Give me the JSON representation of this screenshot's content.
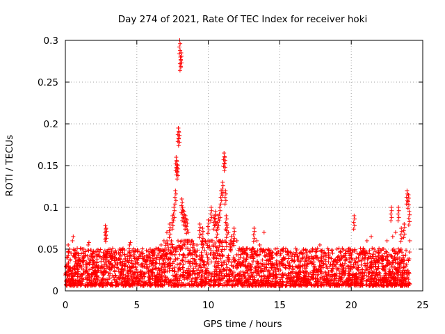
{
  "chart_data": {
    "type": "scatter",
    "title": "Day 274 of 2021, Rate Of TEC Index for receiver hoki",
    "xlabel": "GPS time / hours",
    "ylabel": "ROTI / TECUs",
    "xlim": [
      0,
      25
    ],
    "ylim": [
      0,
      0.3
    ],
    "x_ticks": [
      "0",
      "5",
      "10",
      "15",
      "20",
      "25"
    ],
    "y_ticks": [
      "0",
      "0.05",
      "0.1",
      "0.15",
      "0.2",
      "0.25",
      "0.3"
    ],
    "x_tick_values": [
      0,
      5,
      10,
      15,
      20,
      25
    ],
    "y_tick_values": [
      0,
      0.05,
      0.1,
      0.15,
      0.2,
      0.25,
      0.3
    ],
    "grid": true,
    "marker": "plus",
    "color": "#ff0000",
    "series": [
      {
        "x": [
          0.1,
          0.2,
          0.3,
          0.4,
          0.5,
          0.55,
          0.7,
          1.0,
          1.3,
          1.6,
          1.65,
          2.0,
          2.3,
          2.8,
          2.85,
          3.2,
          3.5,
          3.8,
          4.2,
          4.5,
          4.55,
          4.9,
          5.3,
          5.6,
          5.9,
          6.2,
          6.5,
          6.7,
          6.9,
          7.1,
          7.3,
          7.5,
          7.6,
          7.7,
          7.75,
          7.8,
          7.85,
          7.9,
          7.95,
          8.0,
          8.05,
          8.1,
          8.15,
          8.2,
          8.3,
          8.4,
          8.5,
          8.6,
          8.8,
          9.0,
          9.2,
          9.4,
          9.6,
          9.8,
          10.0,
          10.2,
          10.4,
          10.5,
          10.6,
          10.7,
          10.8,
          10.9,
          11.0,
          11.1,
          11.15,
          11.2,
          11.25,
          11.3,
          11.4,
          11.6,
          11.8,
          12.0,
          12.3,
          12.6,
          12.9,
          13.2,
          13.4,
          13.6,
          13.9,
          14.2,
          14.5,
          14.8,
          15.1,
          15.4,
          15.7,
          16.0,
          16.3,
          16.6,
          16.9,
          17.2,
          17.5,
          17.8,
          18.1,
          18.4,
          18.7,
          19.0,
          19.3,
          19.6,
          19.9,
          20.2,
          20.5,
          20.8,
          21.1,
          21.4,
          21.6,
          21.9,
          22.2,
          22.5,
          22.8,
          22.9,
          23.1,
          23.3,
          23.5,
          23.7,
          23.9,
          24.0,
          24.05,
          24.1
        ],
        "y": [
          0.04,
          0.055,
          0.05,
          0.045,
          0.06,
          0.065,
          0.035,
          0.03,
          0.04,
          0.055,
          0.058,
          0.035,
          0.03,
          0.078,
          0.075,
          0.045,
          0.04,
          0.05,
          0.038,
          0.055,
          0.058,
          0.035,
          0.03,
          0.035,
          0.04,
          0.045,
          0.05,
          0.055,
          0.06,
          0.07,
          0.08,
          0.09,
          0.1,
          0.12,
          0.16,
          0.155,
          0.15,
          0.195,
          0.19,
          0.3,
          0.28,
          0.285,
          0.11,
          0.1,
          0.095,
          0.09,
          0.085,
          0.07,
          0.06,
          0.05,
          0.055,
          0.08,
          0.075,
          0.06,
          0.085,
          0.1,
          0.09,
          0.095,
          0.08,
          0.09,
          0.1,
          0.12,
          0.13,
          0.165,
          0.16,
          0.12,
          0.09,
          0.08,
          0.07,
          0.065,
          0.075,
          0.06,
          0.05,
          0.045,
          0.05,
          0.075,
          0.06,
          0.055,
          0.07,
          0.05,
          0.04,
          0.045,
          0.035,
          0.03,
          0.03,
          0.035,
          0.03,
          0.04,
          0.035,
          0.035,
          0.04,
          0.055,
          0.045,
          0.04,
          0.045,
          0.05,
          0.042,
          0.045,
          0.04,
          0.09,
          0.04,
          0.045,
          0.06,
          0.065,
          0.05,
          0.045,
          0.05,
          0.06,
          0.1,
          0.065,
          0.07,
          0.1,
          0.075,
          0.08,
          0.12,
          0.115,
          0.095,
          0.06
        ]
      },
      {
        "x_range": [
          0,
          24.1
        ],
        "y_range": [
          0,
          0.045
        ],
        "density": "dense"
      }
    ]
  }
}
